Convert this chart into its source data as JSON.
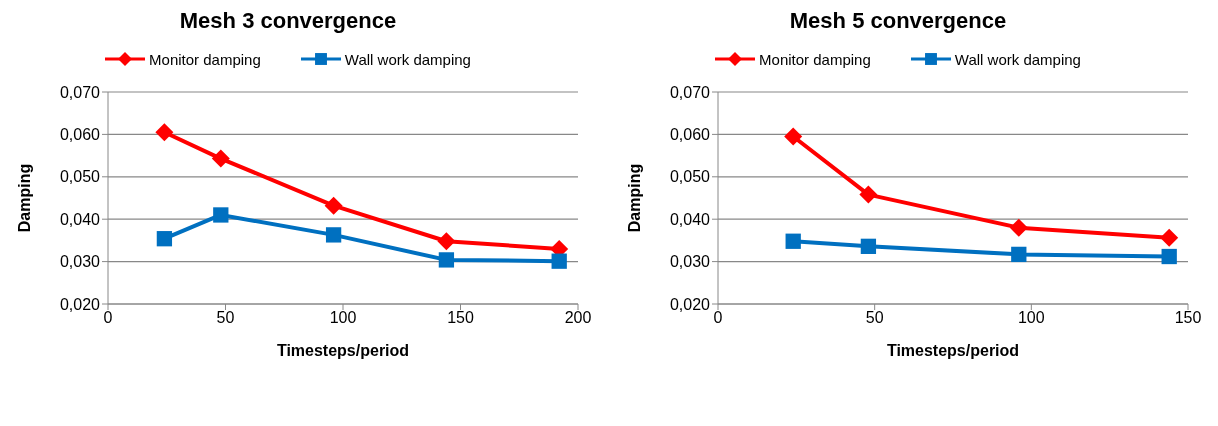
{
  "chart_data": [
    {
      "type": "line",
      "title": "Mesh 3 convergence",
      "xlabel": "Timesteps/period",
      "ylabel": "Damping",
      "x": [
        24,
        48,
        96,
        144,
        192
      ],
      "series": [
        {
          "name": "Monitor damping",
          "color": "#ff0000",
          "marker": "diamond",
          "values": [
            0.0605,
            0.0543,
            0.0432,
            0.0348,
            0.033
          ]
        },
        {
          "name": "Wall work damping",
          "color": "#0070c0",
          "marker": "square",
          "values": [
            0.0354,
            0.041,
            0.0363,
            0.0304,
            0.0301
          ]
        }
      ],
      "xlim": [
        0,
        200
      ],
      "xticks": [
        0,
        50,
        100,
        150,
        200
      ],
      "ylim": [
        0.02,
        0.07
      ],
      "yticks": [
        {
          "value": 0.02,
          "label": "0,020"
        },
        {
          "value": 0.03,
          "label": "0,030"
        },
        {
          "value": 0.04,
          "label": "0,040"
        },
        {
          "value": 0.05,
          "label": "0,050"
        },
        {
          "value": 0.06,
          "label": "0,060"
        },
        {
          "value": 0.07,
          "label": "0,070"
        }
      ],
      "grid": "y",
      "legend": "top",
      "line_style": "solid"
    },
    {
      "type": "line",
      "title": "Mesh 5 convergence",
      "xlabel": "Timesteps/period",
      "ylabel": "Damping",
      "x": [
        24,
        48,
        96,
        144
      ],
      "series": [
        {
          "name": "Monitor damping",
          "color": "#ff0000",
          "marker": "diamond",
          "values": [
            0.0595,
            0.0458,
            0.038,
            0.0356
          ]
        },
        {
          "name": "Wall work damping",
          "color": "#0070c0",
          "marker": "square",
          "values": [
            0.0348,
            0.0336,
            0.0317,
            0.0312
          ]
        }
      ],
      "xlim": [
        0,
        150
      ],
      "xticks": [
        0,
        50,
        100,
        150
      ],
      "ylim": [
        0.02,
        0.07
      ],
      "yticks": [
        {
          "value": 0.02,
          "label": "0,020"
        },
        {
          "value": 0.03,
          "label": "0,030"
        },
        {
          "value": 0.04,
          "label": "0,040"
        },
        {
          "value": 0.05,
          "label": "0,050"
        },
        {
          "value": 0.06,
          "label": "0,060"
        },
        {
          "value": 0.07,
          "label": "0,070"
        }
      ],
      "grid": "y",
      "legend": "top",
      "line_style": "solid"
    }
  ]
}
